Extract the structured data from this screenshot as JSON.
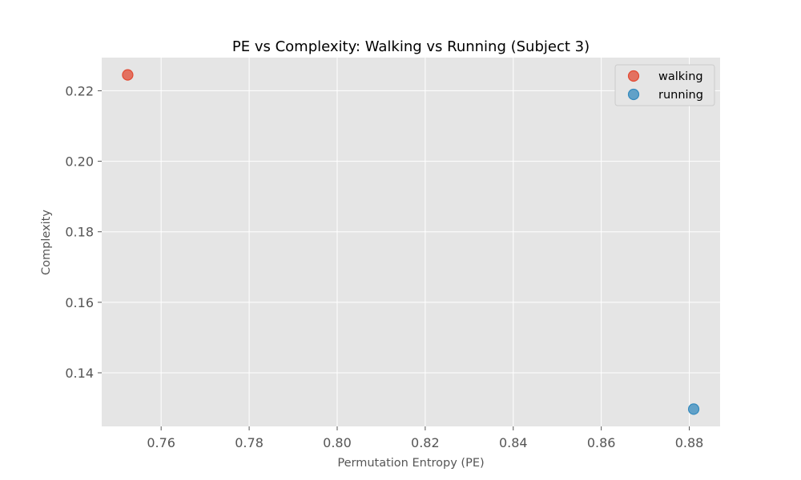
{
  "chart_data": {
    "type": "scatter",
    "title": "PE vs Complexity: Walking vs Running (Subject 3)",
    "xlabel": "Permutation Entropy (PE)",
    "ylabel": "Complexity",
    "xlim": [
      0.7465,
      0.887
    ],
    "ylim": [
      0.1248,
      0.2294
    ],
    "xticks": [
      0.76,
      0.78,
      0.8,
      0.82,
      0.84,
      0.86,
      0.88
    ],
    "yticks": [
      0.14,
      0.16,
      0.18,
      0.2,
      0.22
    ],
    "xtick_labels": [
      "0.76",
      "0.78",
      "0.80",
      "0.82",
      "0.84",
      "0.86",
      "0.88"
    ],
    "ytick_labels": [
      "0.14",
      "0.16",
      "0.18",
      "0.20",
      "0.22"
    ],
    "grid": true,
    "legend_position": "top-right",
    "series": [
      {
        "name": "walking",
        "color": "#E24A33",
        "points": [
          {
            "x": 0.7524,
            "y": 0.2245
          }
        ]
      },
      {
        "name": "running",
        "color": "#348ABD",
        "points": [
          {
            "x": 0.881,
            "y": 0.1297
          }
        ]
      }
    ]
  }
}
